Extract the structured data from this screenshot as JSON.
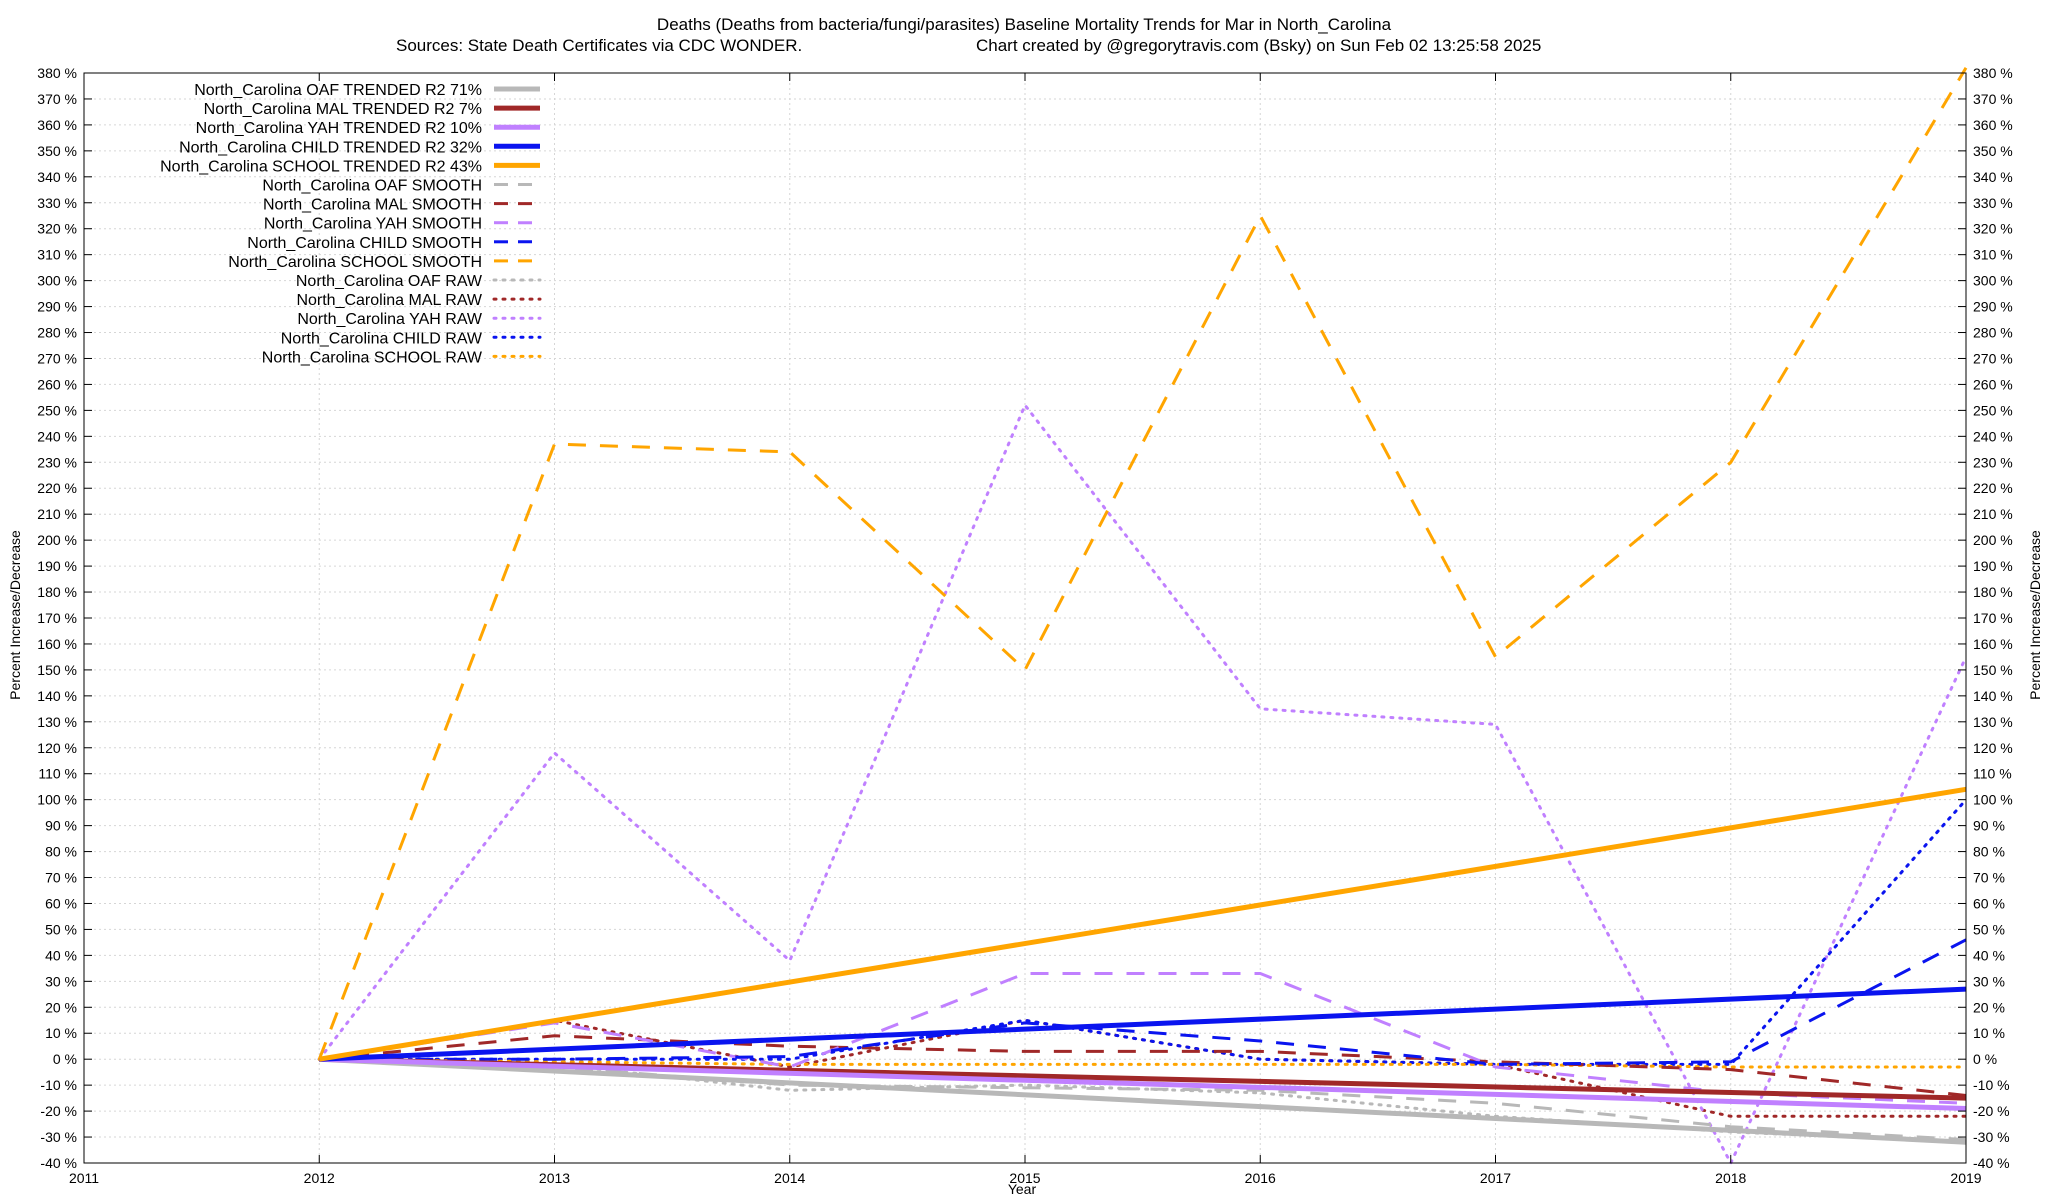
{
  "chart_data": {
    "type": "line",
    "title": "Deaths (Deaths from bacteria/fungi/parasites)  Baseline Mortality Trends for Mar in North_Carolina",
    "subtitle_left": "Sources: State Death Certificates via CDC WONDER.",
    "subtitle_right": "Chart created by @gregorytravis.com (Bsky) on Sun Feb 02 13:25:58 2025",
    "xlabel": "Year",
    "ylabel": "Percent Increase/Decrease",
    "ylabel_right": "Percent Increase/Decrease",
    "xlim": [
      2011,
      2019
    ],
    "ylim": [
      -40,
      380
    ],
    "x_ticks": [
      2011,
      2012,
      2013,
      2014,
      2015,
      2016,
      2017,
      2018,
      2019
    ],
    "x_tick_labels": [
      "2011",
      "2012",
      "2013",
      "2014",
      "2015",
      "2016",
      "2017",
      "2018",
      "2019"
    ],
    "y_ticks": [
      -40,
      -30,
      -20,
      -10,
      0,
      10,
      20,
      30,
      40,
      50,
      60,
      70,
      80,
      90,
      100,
      110,
      120,
      130,
      140,
      150,
      160,
      170,
      180,
      190,
      200,
      210,
      220,
      230,
      240,
      250,
      260,
      270,
      280,
      290,
      300,
      310,
      320,
      330,
      340,
      350,
      360,
      370,
      380
    ],
    "y_tick_labels": [
      "-40 %",
      "-30 %",
      "-20 %",
      "-10 %",
      "0 %",
      "10 %",
      "20 %",
      "30 %",
      "40 %",
      "50 %",
      "60 %",
      "70 %",
      "80 %",
      "90 %",
      "100 %",
      "110 %",
      "120 %",
      "130 %",
      "140 %",
      "150 %",
      "160 %",
      "170 %",
      "180 %",
      "190 %",
      "200 %",
      "210 %",
      "220 %",
      "230 %",
      "240 %",
      "250 %",
      "260 %",
      "270 %",
      "280 %",
      "290 %",
      "300 %",
      "310 %",
      "320 %",
      "330 %",
      "340 %",
      "350 %",
      "360 %",
      "370 %",
      "380 %"
    ],
    "y_tick_labels_right": [
      "-40 %",
      "-30 %",
      "-20 %",
      "-10 %",
      "0 %",
      "10 %",
      "20 %",
      "30 %",
      "40 %",
      "50 %",
      "60 %",
      "70 %",
      "80 %",
      "90 %",
      "100 %",
      "110 %",
      "120 %",
      "130 %",
      "140 %",
      "150 %",
      "160 %",
      "170 %",
      "180 %",
      "190 %",
      "200 %",
      "210 %",
      "220 %",
      "230 %",
      "240 %",
      "250 %",
      "260 %",
      "270 %",
      "280 %",
      "290 %",
      "300 %",
      "310 %",
      "320 %",
      "330 %",
      "340 %",
      "350 %",
      "360 %",
      "370 %",
      "380 %"
    ],
    "grid": true,
    "legend_position": "top-left",
    "series": [
      {
        "name": "North_Carolina OAF TRENDED R2  71%",
        "style": "trended",
        "color": "#b8b8b8",
        "x": [
          2012,
          2019
        ],
        "values": [
          0,
          -32
        ]
      },
      {
        "name": "North_Carolina MAL TRENDED R2   7%",
        "style": "trended",
        "color": "#a02828",
        "x": [
          2012,
          2019
        ],
        "values": [
          0,
          -15
        ]
      },
      {
        "name": "North_Carolina YAH TRENDED R2  10%",
        "style": "trended",
        "color": "#c080ff",
        "x": [
          2012,
          2019
        ],
        "values": [
          0,
          -19
        ]
      },
      {
        "name": "North_Carolina CHILD TRENDED R2  32%",
        "style": "trended",
        "color": "#0a14ef",
        "x": [
          2012,
          2019
        ],
        "values": [
          0,
          27
        ]
      },
      {
        "name": "North_Carolina SCHOOL TRENDED R2  43%",
        "style": "trended",
        "color": "#ffa500",
        "x": [
          2012,
          2019
        ],
        "values": [
          0,
          104
        ]
      },
      {
        "name": "North_Carolina OAF SMOOTH",
        "style": "smooth",
        "color": "#b8b8b8",
        "x": [
          2012,
          2013,
          2014,
          2015,
          2016,
          2017,
          2018,
          2019
        ],
        "values": [
          0,
          -3,
          -10,
          -11,
          -12,
          -17,
          -26,
          -31
        ]
      },
      {
        "name": "North_Carolina MAL SMOOTH",
        "style": "smooth",
        "color": "#a02828",
        "x": [
          2012,
          2013,
          2014,
          2015,
          2016,
          2017,
          2018,
          2019
        ],
        "values": [
          0,
          9,
          5,
          3,
          3,
          -1,
          -4,
          -14
        ]
      },
      {
        "name": "North_Carolina YAH SMOOTH",
        "style": "smooth",
        "color": "#c080ff",
        "x": [
          2012,
          2013,
          2014,
          2015,
          2016,
          2017,
          2018,
          2019
        ],
        "values": [
          0,
          14,
          -3,
          33,
          33,
          -3,
          -13,
          -17
        ]
      },
      {
        "name": "North_Carolina CHILD SMOOTH",
        "style": "smooth",
        "color": "#0a14ef",
        "x": [
          2012,
          2013,
          2014,
          2015,
          2016,
          2017,
          2018,
          2019
        ],
        "values": [
          0,
          0,
          1,
          14,
          7,
          -2,
          -1,
          46
        ]
      },
      {
        "name": "North_Carolina SCHOOL SMOOTH",
        "style": "smooth",
        "color": "#ffa500",
        "x": [
          2012,
          2013,
          2014,
          2015,
          2016,
          2017,
          2018,
          2019
        ],
        "values": [
          0,
          237,
          234,
          150,
          325,
          155,
          230,
          382
        ]
      },
      {
        "name": "North_Carolina OAF RAW",
        "style": "raw",
        "color": "#b8b8b8",
        "x": [
          2012,
          2013,
          2014,
          2015,
          2016,
          2017,
          2018,
          2019
        ],
        "values": [
          0,
          -2,
          -12,
          -10,
          -13,
          -22,
          -28,
          -32
        ]
      },
      {
        "name": "North_Carolina MAL RAW",
        "style": "raw",
        "color": "#a02828",
        "x": [
          2012,
          2013,
          2014,
          2015,
          2016,
          2017,
          2018,
          2019
        ],
        "values": [
          0,
          15,
          -3,
          15,
          0,
          -2,
          -22,
          -22
        ]
      },
      {
        "name": "North_Carolina YAH RAW",
        "style": "raw",
        "color": "#c080ff",
        "x": [
          2012,
          2013,
          2014,
          2015,
          2016,
          2017,
          2018,
          2019
        ],
        "values": [
          0,
          118,
          38,
          252,
          135,
          129,
          -40,
          155
        ]
      },
      {
        "name": "North_Carolina CHILD RAW",
        "style": "raw",
        "color": "#0a14ef",
        "x": [
          2012,
          2013,
          2014,
          2015,
          2016,
          2017,
          2018,
          2019
        ],
        "values": [
          0,
          0,
          0,
          15,
          0,
          -2,
          -2,
          100
        ]
      },
      {
        "name": "North_Carolina SCHOOL RAW",
        "style": "raw",
        "color": "#ffa500",
        "x": [
          2012,
          2013,
          2014,
          2015,
          2016,
          2017,
          2018,
          2019
        ],
        "values": [
          0,
          -1,
          -2,
          -2,
          -2,
          -2,
          -3,
          -3
        ]
      }
    ]
  }
}
